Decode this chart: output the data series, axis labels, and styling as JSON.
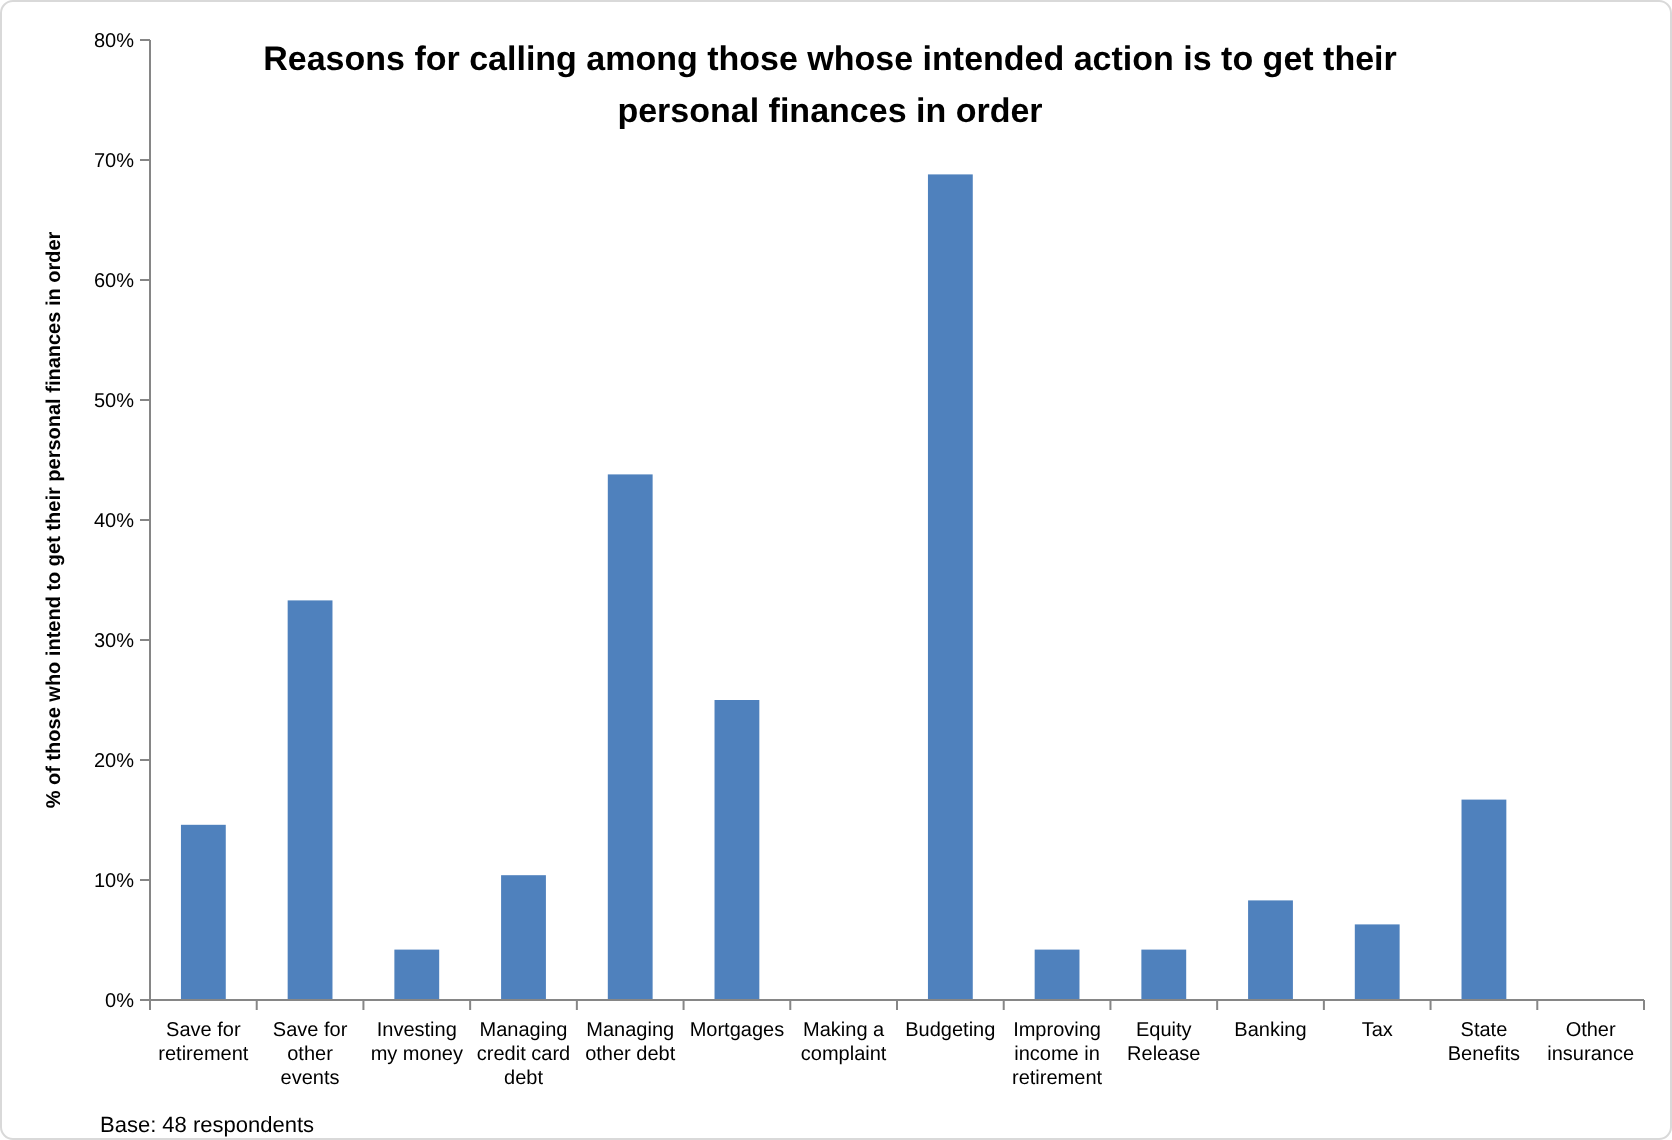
{
  "chart_data": {
    "type": "bar",
    "title": "Reasons for calling among those whose intended action is to get their personal finances in order",
    "ylabel": "% of those who intend to get their personal finances in order",
    "categories": [
      "Save for retirement",
      "Save for other events",
      "Investing my money",
      "Managing credit card debt",
      "Managing other debt",
      "Mortgages",
      "Making a complaint",
      "Budgeting",
      "Improving income in retirement",
      "Equity Release",
      "Banking",
      "Tax",
      "State Benefits",
      "Other insurance"
    ],
    "values": [
      14.6,
      33.3,
      4.2,
      10.4,
      43.8,
      25,
      0,
      68.8,
      4.2,
      4.2,
      8.3,
      6.3,
      16.7,
      0
    ],
    "color": "#4f81bd",
    "ylim": [
      0,
      80
    ],
    "yticks": [
      {
        "value": 0,
        "label": "0%"
      },
      {
        "value": 10,
        "label": "10%"
      },
      {
        "value": 20,
        "label": "20%"
      },
      {
        "value": 30,
        "label": "30%"
      },
      {
        "value": 40,
        "label": "40%"
      },
      {
        "value": 50,
        "label": "50%"
      },
      {
        "value": 60,
        "label": "60%"
      },
      {
        "value": 70,
        "label": "70%"
      },
      {
        "value": 80,
        "label": "80%"
      }
    ],
    "annotations": [
      "Base: 48 respondents"
    ]
  }
}
